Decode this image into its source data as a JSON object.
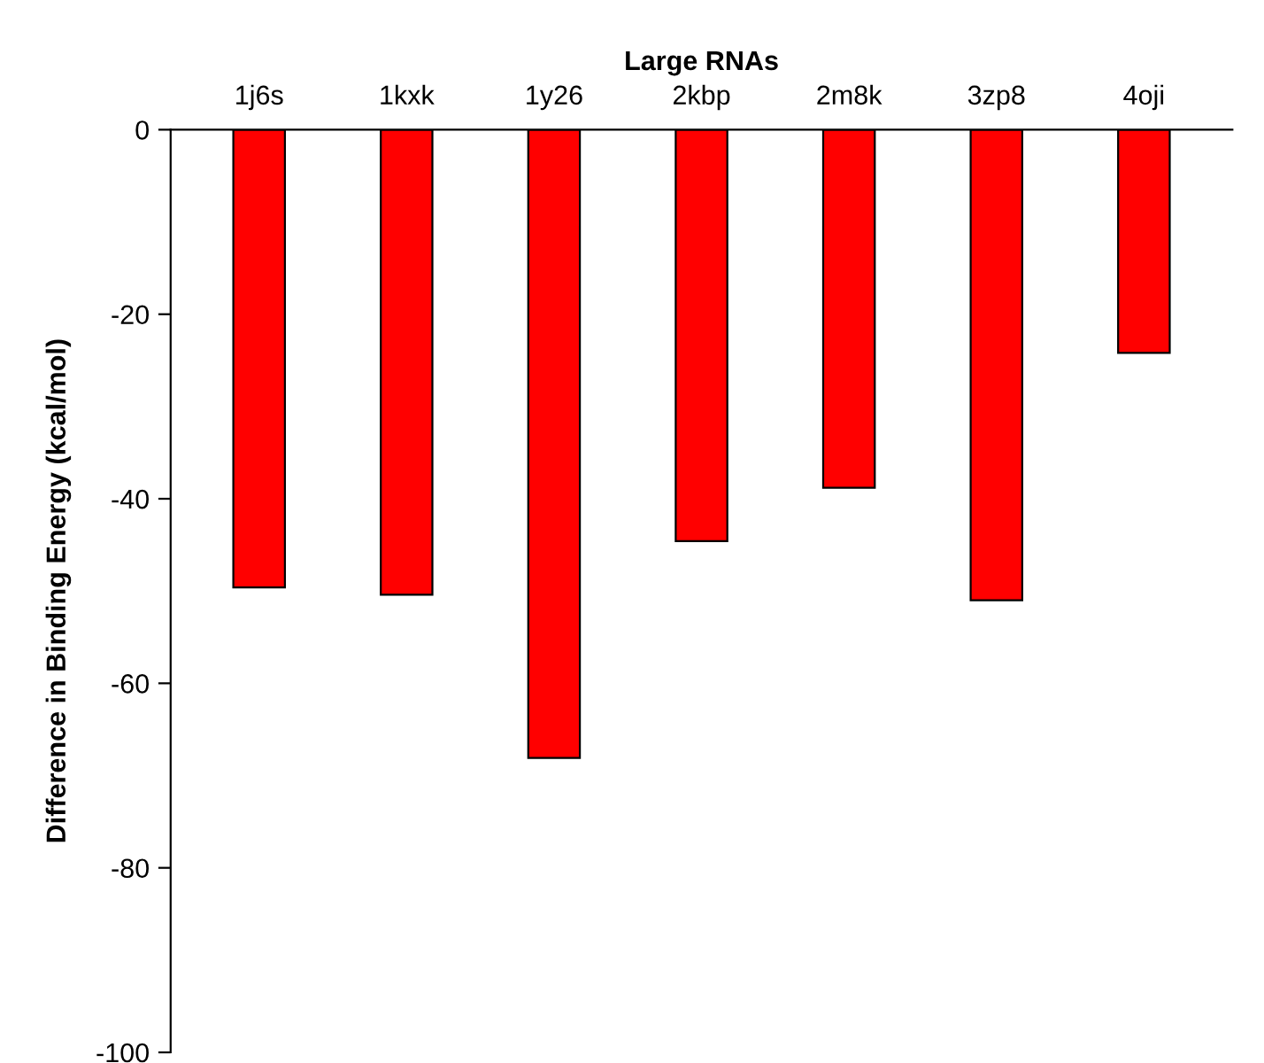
{
  "chart_data": {
    "type": "bar",
    "xlabel": "Large RNAs",
    "ylabel": "Difference in Binding Energy (kcal/mol)",
    "categories": [
      "1j6s",
      "1kxk",
      "1y26",
      "2kbp",
      "2m8k",
      "3zp8",
      "4oji"
    ],
    "values": [
      -49.6,
      -50.4,
      -68.1,
      -44.6,
      -38.8,
      -51.0,
      -24.2
    ],
    "color": "#ff0000",
    "ylim": [
      -100,
      0
    ],
    "yticks": [
      -100,
      -80,
      -60,
      -40,
      -20,
      0
    ],
    "grid": false,
    "legend": false
  }
}
